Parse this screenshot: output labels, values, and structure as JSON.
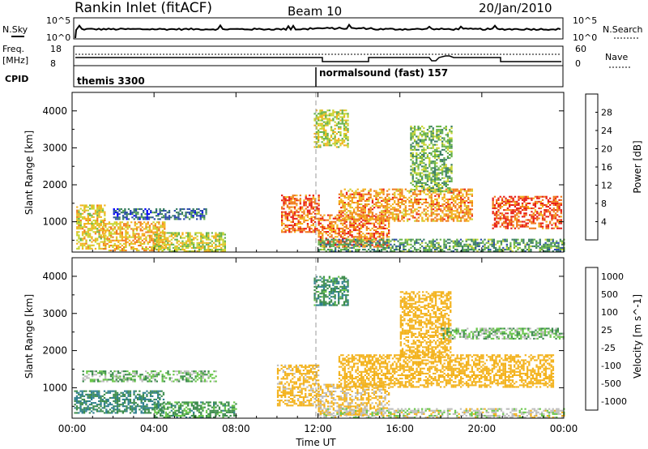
{
  "header": {
    "station": "Rankin Inlet (fitACF)",
    "beam": "Beam 10",
    "date": "20/Jan/2010"
  },
  "strips": {
    "nsky_label": "N.Sky",
    "nsky_ticks": [
      "10^5",
      "10^0"
    ],
    "nsearch_label": "N.Search",
    "nsearch_ticks": [
      "10^5",
      "10^0"
    ],
    "freq_label": "Freq.",
    "freq_unit": "[MHz]",
    "freq_ticks": [
      "18",
      "8"
    ],
    "nave_label": "Nave",
    "nave_ticks": [
      "60",
      "0"
    ],
    "cpid_label": "CPID",
    "cpid_segments": [
      {
        "label": "themis 3300",
        "start": "00:00"
      },
      {
        "label": "normalsound (fast) 157",
        "start": "12:00"
      }
    ]
  },
  "chart_data": [
    {
      "type": "heatmap",
      "title": "",
      "xlabel": "Time UT",
      "ylabel": "Slant Range [km]",
      "x_ticks": [
        "00:00",
        "04:00",
        "08:00",
        "12:00",
        "16:00",
        "20:00",
        "00:00"
      ],
      "x_range_hours": [
        0,
        24
      ],
      "y_ticks": [
        "1000",
        "2000",
        "3000",
        "4000"
      ],
      "ylim": [
        180,
        4500
      ],
      "colorbar_label": "Power [dB]",
      "colorbar_ticks": [
        "4",
        "8",
        "12",
        "16",
        "20",
        "24",
        "28"
      ],
      "colorbar_range": [
        0,
        32
      ],
      "colors": [
        "#0000ff",
        "#2a4aa8",
        "#3b7f63",
        "#66b24a",
        "#c8d431",
        "#f3b21c",
        "#f07a1c",
        "#e81e14"
      ],
      "regions": [
        {
          "t0": 0.2,
          "t1": 1.6,
          "r0": 250,
          "r1": 1450,
          "value": 20
        },
        {
          "t0": 1.5,
          "t1": 4.5,
          "r0": 200,
          "r1": 1000,
          "value": 22
        },
        {
          "t0": 4.0,
          "t1": 7.5,
          "r0": 180,
          "r1": 700,
          "value": 18
        },
        {
          "t0": 2.0,
          "t1": 6.5,
          "r0": 1050,
          "r1": 1350,
          "value": 8
        },
        {
          "t0": 10.2,
          "t1": 12.0,
          "r0": 700,
          "r1": 1700,
          "value": 27
        },
        {
          "t0": 12.0,
          "t1": 15.5,
          "r0": 300,
          "r1": 1200,
          "value": 26
        },
        {
          "t0": 13.0,
          "t1": 19.5,
          "r0": 1000,
          "r1": 1900,
          "value": 24
        },
        {
          "t0": 20.5,
          "t1": 23.9,
          "r0": 800,
          "r1": 1700,
          "value": 28
        },
        {
          "t0": 16.5,
          "t1": 18.5,
          "r0": 1800,
          "r1": 3600,
          "value": 14
        },
        {
          "t0": 11.8,
          "t1": 13.5,
          "r0": 3000,
          "r1": 4000,
          "value": 18
        },
        {
          "t0": 12.0,
          "t1": 24.0,
          "r0": 180,
          "r1": 500,
          "value": 12
        }
      ]
    },
    {
      "type": "heatmap",
      "title": "",
      "xlabel": "Time UT",
      "ylabel": "Slant Range [km]",
      "x_ticks": [
        "00:00",
        "04:00",
        "08:00",
        "12:00",
        "16:00",
        "20:00",
        "00:00"
      ],
      "x_range_hours": [
        0,
        24
      ],
      "y_ticks": [
        "1000",
        "2000",
        "3000",
        "4000"
      ],
      "ylim": [
        180,
        4500
      ],
      "colorbar_label": "Velocity [m s^-1]",
      "colorbar_ticks": [
        "1000",
        "500",
        "100",
        "25",
        "-25",
        "-100",
        "-500",
        "-1000"
      ],
      "colors": [
        "#1d3fae",
        "#2e7f8e",
        "#3c8c4c",
        "#69c64a",
        "#bdbdbd",
        "#f3b21c",
        "#f07a1c",
        "#e81e14"
      ],
      "regions": [
        {
          "t0": 0.1,
          "t1": 4.5,
          "r0": 300,
          "r1": 900,
          "value": 100
        },
        {
          "t0": 0.5,
          "t1": 7.0,
          "r0": 1150,
          "r1": 1450,
          "value": 0
        },
        {
          "t0": 4.0,
          "t1": 8.0,
          "r0": 180,
          "r1": 600,
          "value": 50
        },
        {
          "t0": 10.0,
          "t1": 12.0,
          "r0": 500,
          "r1": 1600,
          "value": -150
        },
        {
          "t0": 12.0,
          "t1": 15.5,
          "r0": 250,
          "r1": 1100,
          "value": -120
        },
        {
          "t0": 13.0,
          "t1": 23.5,
          "r0": 1000,
          "r1": 1900,
          "value": -300
        },
        {
          "t0": 16.0,
          "t1": 18.5,
          "r0": 1800,
          "r1": 3600,
          "value": -200
        },
        {
          "t0": 18.0,
          "t1": 24.0,
          "r0": 2300,
          "r1": 2600,
          "value": 0
        },
        {
          "t0": 11.8,
          "t1": 13.5,
          "r0": 3200,
          "r1": 4000,
          "value": 80
        },
        {
          "t0": 12.0,
          "t1": 24.0,
          "r0": 180,
          "r1": 450,
          "value": -60
        }
      ]
    }
  ]
}
